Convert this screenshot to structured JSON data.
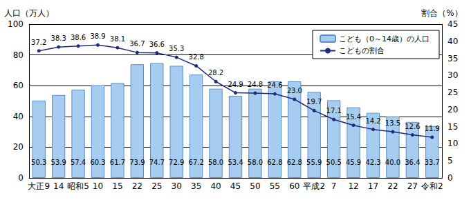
{
  "chart_data": {
    "type": "bar",
    "ylabel": "人口（万人）",
    "y2label": "割合（%）",
    "categories": [
      "大正9",
      "14",
      "昭和5",
      "10",
      "15",
      "22",
      "25",
      "30",
      "35",
      "40",
      "45",
      "50",
      "55",
      "60",
      "平成2",
      "7",
      "12",
      "17",
      "22",
      "27",
      "令和2"
    ],
    "series": [
      {
        "name": "こども（0～14歳）の人口",
        "type": "bar",
        "color": "#a6cdf0",
        "values": [
          50.3,
          53.9,
          57.4,
          60.3,
          61.7,
          73.9,
          74.7,
          72.9,
          67.2,
          58.0,
          53.4,
          58.0,
          62.8,
          62.8,
          55.9,
          50.5,
          45.9,
          42.3,
          40.0,
          36.4,
          33.7
        ],
        "value_labels": [
          "50.3",
          "53.9",
          "57.4",
          "60.3",
          "61.7",
          "73.9",
          "74.7",
          "72.9",
          "67.2",
          "58.0",
          "53.4",
          "58.0",
          "62.8",
          "62.8",
          "55.9",
          "50.5",
          "45.9",
          "42.3",
          "40.0",
          "36.4",
          "33.7"
        ]
      },
      {
        "name": "こどもの割合",
        "type": "line",
        "axis": "y2",
        "color": "#1f2a7a",
        "marker": "circle",
        "line_style": "solid",
        "values": [
          37.2,
          38.3,
          38.6,
          38.9,
          38.1,
          36.7,
          36.6,
          35.3,
          32.8,
          28.2,
          24.9,
          24.8,
          24.6,
          23.0,
          19.7,
          17.1,
          15.4,
          14.2,
          13.5,
          12.6,
          11.9
        ],
        "value_labels": [
          "37.2",
          "38.3",
          "38.6",
          "38.9",
          "38.1",
          "36.7",
          "36.6",
          "35.3",
          "32.8",
          "28.2",
          "24.9",
          "24.8",
          "24.6",
          "23.0",
          "19.7",
          "17.1",
          "15.4",
          "14.2",
          "13.5",
          "12.6",
          "11.9"
        ]
      }
    ],
    "ylim": [
      0,
      100
    ],
    "yticks": [
      0,
      20,
      40,
      60,
      80,
      100
    ],
    "y2lim": [
      0,
      45
    ],
    "y2ticks": [
      0,
      5,
      10,
      15,
      20,
      25,
      30,
      35,
      40,
      45
    ],
    "grid": true,
    "legend": "top-right",
    "data_labels": true
  }
}
